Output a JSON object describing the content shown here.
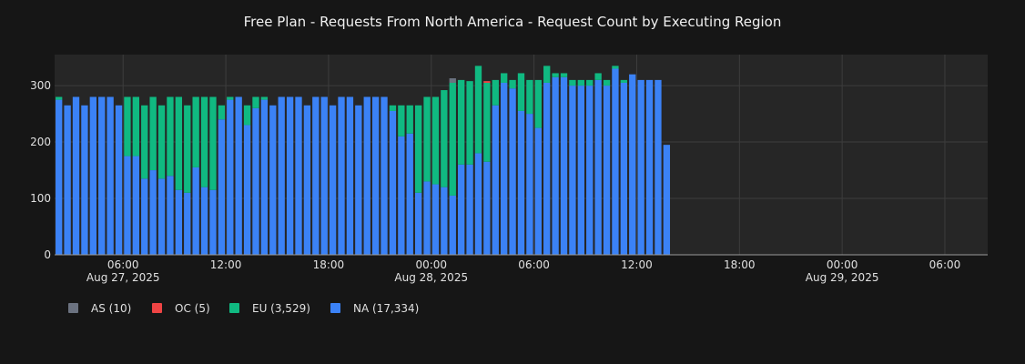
{
  "chart_data": {
    "type": "bar",
    "stacked": true,
    "title": "Free Plan - Requests From North America - Request Count by Executing Region",
    "xlabel": "",
    "ylabel": "",
    "ylim": [
      0,
      355
    ],
    "yticks": [
      0,
      100,
      200,
      300
    ],
    "x_start": "2025-08-27T02:00",
    "x_end": "2025-08-29T08:30",
    "bar_interval_minutes": 30,
    "grid": true,
    "legend_position": "bottom-left",
    "xticks": [
      {
        "label": "06:00",
        "sublabel": "Aug 27, 2025",
        "time": "2025-08-27T06:00"
      },
      {
        "label": "12:00",
        "sublabel": "",
        "time": "2025-08-27T12:00"
      },
      {
        "label": "18:00",
        "sublabel": "",
        "time": "2025-08-27T18:00"
      },
      {
        "label": "00:00",
        "sublabel": "Aug 28, 2025",
        "time": "2025-08-28T00:00"
      },
      {
        "label": "06:00",
        "sublabel": "",
        "time": "2025-08-28T06:00"
      },
      {
        "label": "12:00",
        "sublabel": "",
        "time": "2025-08-28T12:00"
      },
      {
        "label": "18:00",
        "sublabel": "",
        "time": "2025-08-28T18:00"
      },
      {
        "label": "00:00",
        "sublabel": "Aug 29, 2025",
        "time": "2025-08-29T00:00"
      },
      {
        "label": "06:00",
        "sublabel": "",
        "time": "2025-08-29T06:00"
      }
    ],
    "series": [
      {
        "name": "NA (17,334)",
        "color": "#3b82f6",
        "values": [
          275,
          265,
          280,
          265,
          280,
          280,
          280,
          265,
          175,
          175,
          135,
          150,
          135,
          140,
          115,
          110,
          155,
          120,
          115,
          240,
          275,
          280,
          230,
          260,
          275,
          265,
          280,
          280,
          280,
          265,
          280,
          280,
          265,
          280,
          280,
          265,
          280,
          280,
          280,
          255,
          210,
          215,
          110,
          130,
          125,
          120,
          105,
          160,
          160,
          180,
          165,
          265,
          305,
          295,
          255,
          250,
          225,
          305,
          315,
          315,
          300,
          300,
          300,
          310,
          300,
          330,
          305,
          320,
          310,
          310,
          310,
          195
        ]
      },
      {
        "name": "EU (3,529)",
        "color": "#10b981",
        "values": [
          5,
          0,
          0,
          0,
          0,
          0,
          0,
          0,
          105,
          105,
          130,
          130,
          130,
          140,
          165,
          155,
          125,
          160,
          165,
          25,
          5,
          0,
          35,
          20,
          5,
          0,
          0,
          0,
          0,
          0,
          0,
          0,
          0,
          0,
          0,
          0,
          0,
          0,
          0,
          10,
          55,
          50,
          155,
          150,
          155,
          172,
          200,
          150,
          148,
          155,
          140,
          45,
          17,
          15,
          67,
          60,
          85,
          30,
          7,
          7,
          10,
          10,
          10,
          12,
          10,
          5,
          5,
          0,
          0,
          0,
          0,
          0
        ]
      },
      {
        "name": "OC (5)",
        "color": "#ef4444",
        "values": [
          0,
          0,
          0,
          0,
          0,
          0,
          0,
          0,
          0,
          0,
          0,
          0,
          0,
          0,
          0,
          0,
          0,
          0,
          0,
          0,
          0,
          0,
          0,
          0,
          0,
          0,
          0,
          0,
          0,
          0,
          0,
          0,
          0,
          0,
          0,
          0,
          0,
          0,
          0,
          0,
          0,
          0,
          0,
          0,
          0,
          0,
          0,
          0,
          0,
          0,
          3,
          0,
          0,
          0,
          0,
          0,
          0,
          0,
          0,
          0,
          0,
          0,
          0,
          0,
          0,
          0,
          0,
          0,
          0,
          0,
          0,
          0
        ]
      },
      {
        "name": "AS (10)",
        "color": "#6b7280",
        "values": [
          0,
          0,
          0,
          0,
          0,
          0,
          0,
          0,
          0,
          0,
          0,
          0,
          0,
          0,
          0,
          0,
          0,
          0,
          0,
          0,
          0,
          0,
          0,
          0,
          0,
          0,
          0,
          0,
          0,
          0,
          0,
          0,
          0,
          0,
          0,
          0,
          0,
          0,
          0,
          0,
          0,
          0,
          0,
          0,
          0,
          0,
          8,
          0,
          0,
          0,
          0,
          0,
          0,
          0,
          0,
          0,
          0,
          0,
          0,
          0,
          0,
          0,
          0,
          0,
          0,
          0,
          0,
          0,
          0,
          0,
          0,
          0
        ]
      }
    ],
    "legend": [
      {
        "label": "AS (10)",
        "color": "#6b7280"
      },
      {
        "label": "OC (5)",
        "color": "#ef4444"
      },
      {
        "label": "EU (3,529)",
        "color": "#10b981"
      },
      {
        "label": "NA (17,334)",
        "color": "#3b82f6"
      }
    ]
  }
}
